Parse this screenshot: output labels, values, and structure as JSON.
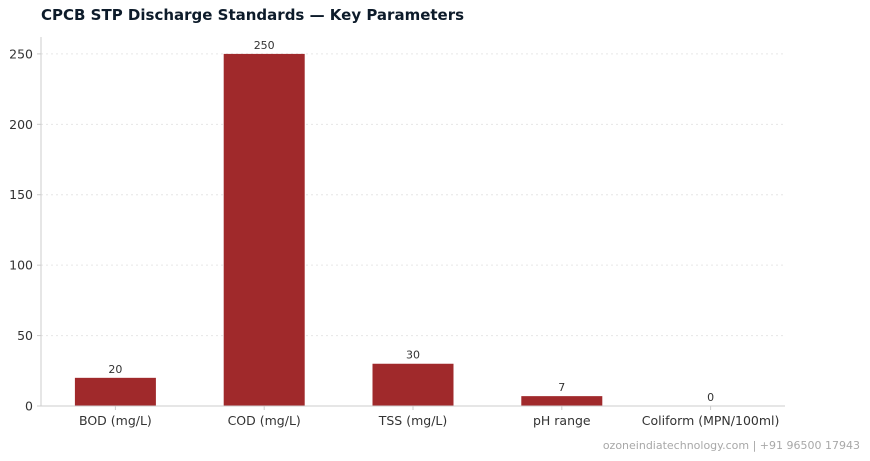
{
  "title": "CPCB STP Discharge Standards — Key Parameters",
  "watermark": "ozoneindiatechnology.com | +91 96500 17943",
  "colors": {
    "bar": "#a0292b",
    "grid": "#e6e6e6",
    "axis": "#cccccc",
    "text": "#333333",
    "title": "#0d1b2a"
  },
  "chart_data": {
    "type": "bar",
    "title": "CPCB STP Discharge Standards — Key Parameters",
    "xlabel": "",
    "ylabel": "",
    "categories": [
      "BOD (mg/L)",
      "COD (mg/L)",
      "TSS (mg/L)",
      "pH range",
      "Coliform (MPN/100ml)"
    ],
    "values": [
      20,
      250,
      30,
      7,
      0
    ],
    "data_labels": [
      "20",
      "250",
      "30",
      "7",
      "0"
    ],
    "ylim": [
      0,
      262
    ],
    "yticks": [
      0,
      50,
      100,
      150,
      200,
      250
    ],
    "grid": "horizontal-dotted",
    "legend": "none"
  }
}
